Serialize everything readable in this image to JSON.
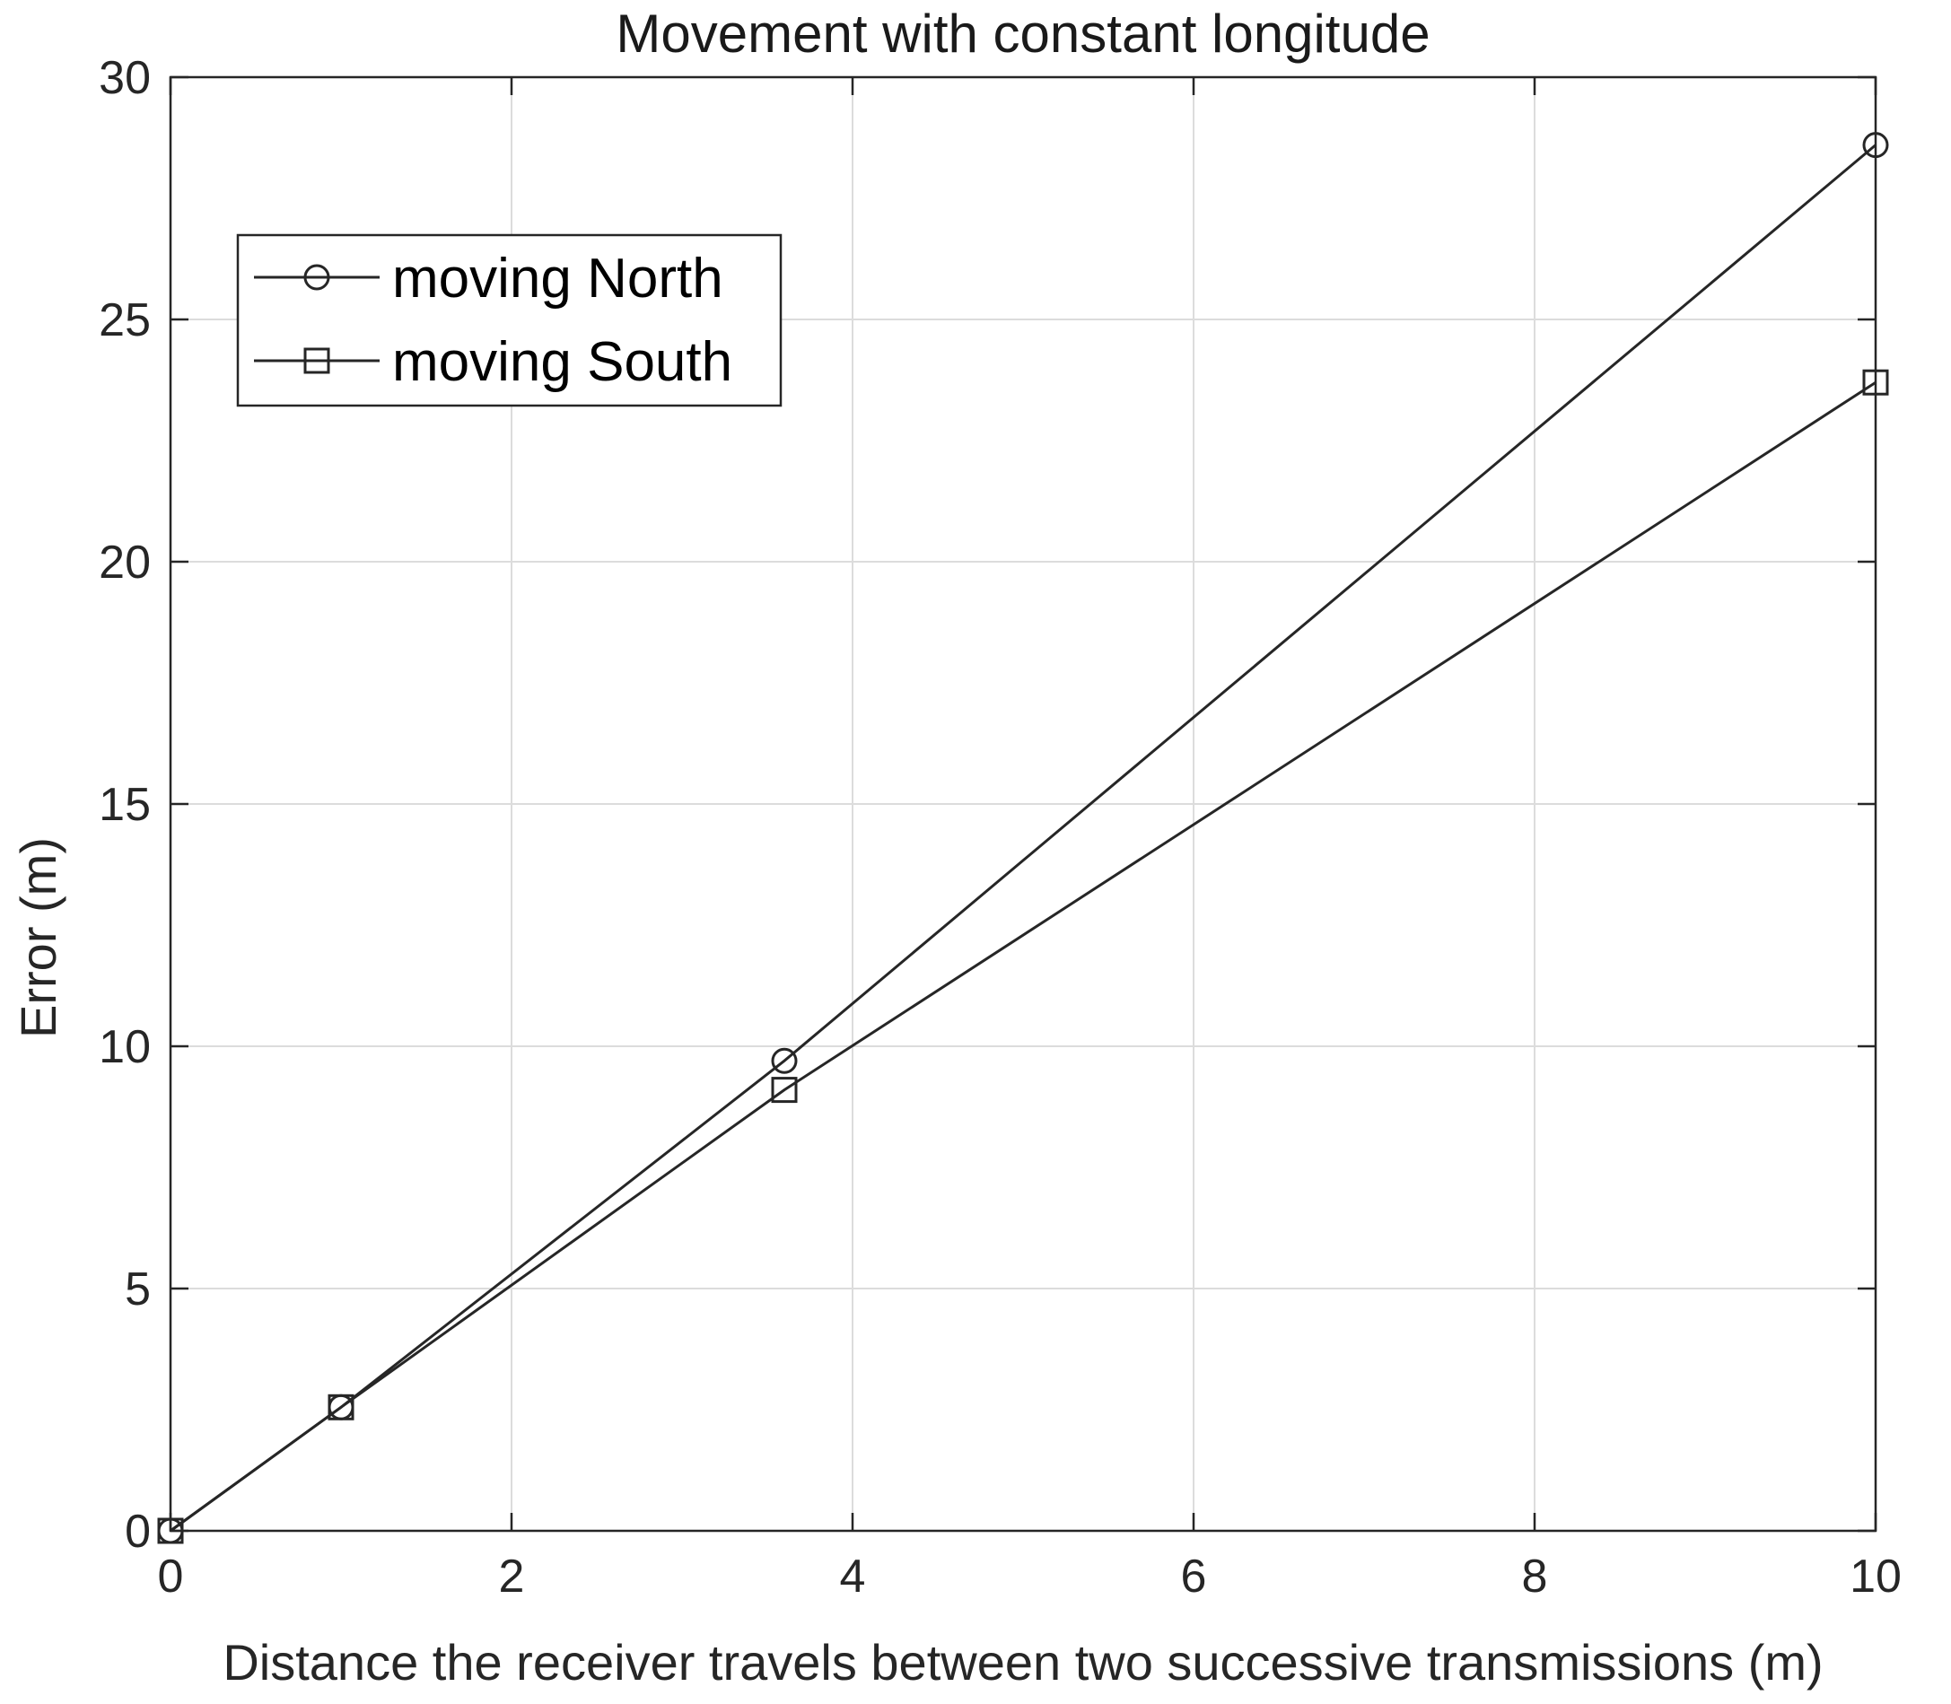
{
  "chart_data": {
    "type": "line",
    "title": "Movement with constant longitude",
    "xlabel": "Distance the receiver travels between two successive transmissions (m)",
    "ylabel": "Error (m)",
    "xlim": [
      0,
      10
    ],
    "ylim": [
      0,
      30
    ],
    "xticks": [
      0,
      2,
      4,
      6,
      8,
      10
    ],
    "yticks": [
      0,
      5,
      10,
      15,
      20,
      25,
      30
    ],
    "grid": true,
    "legend_position": "top-left",
    "series": [
      {
        "name": "moving North",
        "marker": "circle",
        "color": "#262626",
        "points": [
          [
            0,
            0
          ],
          [
            1,
            2.55
          ],
          [
            3.6,
            9.7
          ],
          [
            10,
            28.6
          ]
        ]
      },
      {
        "name": "moving South",
        "marker": "square",
        "color": "#262626",
        "points": [
          [
            0,
            0
          ],
          [
            1,
            2.55
          ],
          [
            3.6,
            9.1
          ],
          [
            10,
            23.7
          ]
        ]
      }
    ]
  }
}
